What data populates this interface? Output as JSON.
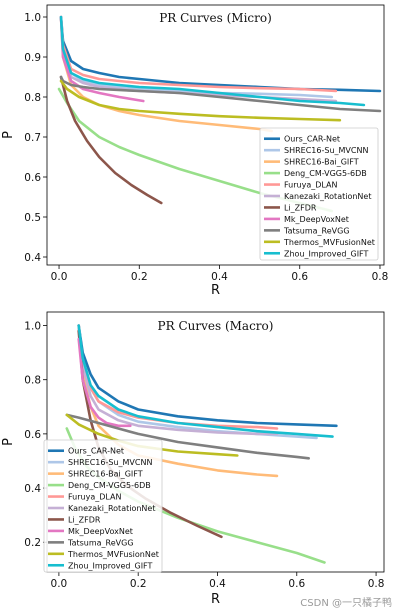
{
  "watermark": "CSDN @一只橘子鸭",
  "chart_data": [
    {
      "type": "line",
      "title": "PR Curves (Micro)",
      "xlabel": "R",
      "ylabel": "P",
      "xlim": [
        -0.03,
        0.81
      ],
      "ylim": [
        0.38,
        1.03
      ],
      "xticks": [
        "0.0",
        "0.2",
        "0.4",
        "0.6",
        "0.8"
      ],
      "yticks": [
        "0.4",
        "0.5",
        "0.6",
        "0.7",
        "0.8",
        "0.9",
        "1.0"
      ],
      "legend_position": "lower-right",
      "series": [
        {
          "name": "Ours_CAR-Net",
          "color": "#1f77b4",
          "x": [
            0.005,
            0.01,
            0.03,
            0.06,
            0.1,
            0.15,
            0.2,
            0.3,
            0.4,
            0.5,
            0.6,
            0.7,
            0.8
          ],
          "y": [
            1.0,
            0.94,
            0.89,
            0.87,
            0.86,
            0.85,
            0.845,
            0.835,
            0.83,
            0.825,
            0.82,
            0.818,
            0.815
          ]
        },
        {
          "name": "SHREC16-Su_MVCNN",
          "color": "#aec7e8",
          "x": [
            0.005,
            0.01,
            0.03,
            0.06,
            0.1,
            0.2,
            0.3,
            0.4,
            0.5,
            0.6,
            0.68
          ],
          "y": [
            1.0,
            0.92,
            0.86,
            0.84,
            0.83,
            0.82,
            0.815,
            0.81,
            0.808,
            0.805,
            0.8
          ]
        },
        {
          "name": "SHREC16-Bai_GIFT",
          "color": "#ffbb78",
          "x": [
            0.005,
            0.01,
            0.03,
            0.06,
            0.1,
            0.15,
            0.2,
            0.3,
            0.4,
            0.5,
            0.53
          ],
          "y": [
            1.0,
            0.9,
            0.83,
            0.8,
            0.78,
            0.765,
            0.755,
            0.74,
            0.73,
            0.72,
            0.715
          ]
        },
        {
          "name": "Deng_CM-VGG5-6DB",
          "color": "#98df8a",
          "x": [
            0.0,
            0.02,
            0.05,
            0.1,
            0.15,
            0.2,
            0.3,
            0.4,
            0.5,
            0.6,
            0.68
          ],
          "y": [
            0.82,
            0.785,
            0.74,
            0.7,
            0.675,
            0.655,
            0.62,
            0.59,
            0.56,
            0.535,
            0.515
          ]
        },
        {
          "name": "Furuya_DLAN",
          "color": "#ff9896",
          "x": [
            0.005,
            0.01,
            0.03,
            0.06,
            0.1,
            0.2,
            0.3,
            0.4,
            0.5,
            0.6,
            0.69
          ],
          "y": [
            1.0,
            0.93,
            0.87,
            0.855,
            0.845,
            0.835,
            0.83,
            0.825,
            0.822,
            0.82,
            0.815
          ]
        },
        {
          "name": "Kanezaki_RotationNet",
          "color": "#c5b0d5",
          "x": [
            0.005,
            0.01,
            0.03,
            0.06,
            0.1,
            0.2,
            0.3,
            0.4,
            0.5,
            0.6,
            0.69
          ],
          "y": [
            1.0,
            0.91,
            0.85,
            0.835,
            0.825,
            0.815,
            0.81,
            0.805,
            0.8,
            0.795,
            0.79
          ]
        },
        {
          "name": "Li_ZFDR",
          "color": "#8c564b",
          "x": [
            0.005,
            0.02,
            0.04,
            0.07,
            0.1,
            0.14,
            0.18,
            0.22,
            0.255
          ],
          "y": [
            0.85,
            0.79,
            0.74,
            0.69,
            0.65,
            0.61,
            0.58,
            0.555,
            0.535
          ]
        },
        {
          "name": "Mk_DeepVoxNet",
          "color": "#e377c2",
          "x": [
            0.005,
            0.01,
            0.03,
            0.06,
            0.1,
            0.15,
            0.21
          ],
          "y": [
            1.0,
            0.9,
            0.84,
            0.82,
            0.81,
            0.8,
            0.79
          ]
        },
        {
          "name": "Tatsuma_ReVGG",
          "color": "#7f7f7f",
          "x": [
            0.005,
            0.01,
            0.03,
            0.06,
            0.1,
            0.2,
            0.3,
            0.4,
            0.5,
            0.6,
            0.7,
            0.8
          ],
          "y": [
            0.85,
            0.84,
            0.83,
            0.825,
            0.82,
            0.815,
            0.81,
            0.8,
            0.79,
            0.78,
            0.77,
            0.765
          ]
        },
        {
          "name": "Thermos_MVFusionNet",
          "color": "#bcbd22",
          "x": [
            0.005,
            0.02,
            0.05,
            0.1,
            0.15,
            0.2,
            0.3,
            0.4,
            0.5,
            0.6,
            0.7
          ],
          "y": [
            0.84,
            0.82,
            0.8,
            0.78,
            0.77,
            0.765,
            0.758,
            0.752,
            0.748,
            0.745,
            0.742
          ]
        },
        {
          "name": "Zhou_Improved_GIFT",
          "color": "#17becf",
          "x": [
            0.005,
            0.01,
            0.03,
            0.06,
            0.1,
            0.2,
            0.3,
            0.4,
            0.5,
            0.6,
            0.7,
            0.76
          ],
          "y": [
            1.0,
            0.92,
            0.86,
            0.845,
            0.835,
            0.825,
            0.82,
            0.81,
            0.8,
            0.79,
            0.785,
            0.78
          ]
        }
      ]
    },
    {
      "type": "line",
      "title": "PR Curves (Macro)",
      "xlabel": "R",
      "ylabel": "P",
      "xlim": [
        -0.03,
        0.82
      ],
      "ylim": [
        0.09,
        1.05
      ],
      "xticks": [
        "0.0",
        "0.2",
        "0.4",
        "0.6",
        "0.8"
      ],
      "yticks": [
        "0.2",
        "0.4",
        "0.6",
        "0.8",
        "1.0"
      ],
      "legend_position": "lower-left",
      "series": [
        {
          "name": "Ours_CAR-Net",
          "color": "#1f77b4",
          "x": [
            0.05,
            0.06,
            0.08,
            0.1,
            0.15,
            0.2,
            0.3,
            0.4,
            0.5,
            0.6,
            0.7
          ],
          "y": [
            1.0,
            0.9,
            0.82,
            0.77,
            0.72,
            0.69,
            0.665,
            0.65,
            0.64,
            0.635,
            0.63
          ]
        },
        {
          "name": "SHREC16-Su_MVCNN",
          "color": "#aec7e8",
          "x": [
            0.05,
            0.06,
            0.08,
            0.1,
            0.15,
            0.2,
            0.3,
            0.4,
            0.5,
            0.6,
            0.65
          ],
          "y": [
            1.0,
            0.87,
            0.77,
            0.72,
            0.67,
            0.645,
            0.625,
            0.61,
            0.6,
            0.59,
            0.585
          ]
        },
        {
          "name": "SHREC16-Bai_GIFT",
          "color": "#ffbb78",
          "x": [
            0.05,
            0.06,
            0.08,
            0.1,
            0.15,
            0.2,
            0.3,
            0.4,
            0.5,
            0.55
          ],
          "y": [
            1.0,
            0.82,
            0.7,
            0.63,
            0.56,
            0.52,
            0.49,
            0.465,
            0.45,
            0.445
          ]
        },
        {
          "name": "Deng_CM-VGG5-6DB",
          "color": "#98df8a",
          "x": [
            0.02,
            0.04,
            0.07,
            0.1,
            0.15,
            0.2,
            0.3,
            0.4,
            0.5,
            0.6,
            0.67
          ],
          "y": [
            0.62,
            0.55,
            0.48,
            0.44,
            0.39,
            0.35,
            0.29,
            0.24,
            0.2,
            0.16,
            0.125
          ]
        },
        {
          "name": "Furuya_DLAN",
          "color": "#ff9896",
          "x": [
            0.05,
            0.06,
            0.08,
            0.1,
            0.15,
            0.2,
            0.3,
            0.4,
            0.5,
            0.55
          ],
          "y": [
            1.0,
            0.86,
            0.77,
            0.72,
            0.68,
            0.66,
            0.64,
            0.63,
            0.625,
            0.62
          ]
        },
        {
          "name": "Kanezaki_RotationNet",
          "color": "#c5b0d5",
          "x": [
            0.05,
            0.06,
            0.08,
            0.1,
            0.15,
            0.2,
            0.3,
            0.4,
            0.5,
            0.55
          ],
          "y": [
            1.0,
            0.85,
            0.74,
            0.69,
            0.65,
            0.63,
            0.615,
            0.605,
            0.6,
            0.6
          ]
        },
        {
          "name": "Li_ZFDR",
          "color": "#8c564b",
          "x": [
            0.05,
            0.06,
            0.08,
            0.1,
            0.13,
            0.17,
            0.22,
            0.28,
            0.35,
            0.41
          ],
          "y": [
            0.98,
            0.8,
            0.65,
            0.55,
            0.47,
            0.41,
            0.36,
            0.31,
            0.26,
            0.22
          ]
        },
        {
          "name": "Mk_DeepVoxNet",
          "color": "#e377c2",
          "x": [
            0.05,
            0.06,
            0.08,
            0.1,
            0.12,
            0.15,
            0.18
          ],
          "y": [
            0.95,
            0.8,
            0.7,
            0.66,
            0.64,
            0.63,
            0.63
          ]
        },
        {
          "name": "Tatsuma_ReVGG",
          "color": "#7f7f7f",
          "x": [
            0.02,
            0.05,
            0.1,
            0.15,
            0.2,
            0.3,
            0.4,
            0.5,
            0.6,
            0.63
          ],
          "y": [
            0.67,
            0.66,
            0.64,
            0.62,
            0.6,
            0.57,
            0.55,
            0.53,
            0.515,
            0.51
          ]
        },
        {
          "name": "Thermos_MVFusionNet",
          "color": "#bcbd22",
          "x": [
            0.02,
            0.05,
            0.1,
            0.15,
            0.2,
            0.3,
            0.4,
            0.45
          ],
          "y": [
            0.67,
            0.635,
            0.6,
            0.575,
            0.555,
            0.535,
            0.525,
            0.52
          ]
        },
        {
          "name": "Zhou_Improved_GIFT",
          "color": "#17becf",
          "x": [
            0.05,
            0.06,
            0.08,
            0.1,
            0.15,
            0.2,
            0.3,
            0.4,
            0.5,
            0.6,
            0.69
          ],
          "y": [
            1.0,
            0.88,
            0.78,
            0.74,
            0.69,
            0.665,
            0.64,
            0.625,
            0.61,
            0.6,
            0.59
          ]
        }
      ]
    }
  ]
}
